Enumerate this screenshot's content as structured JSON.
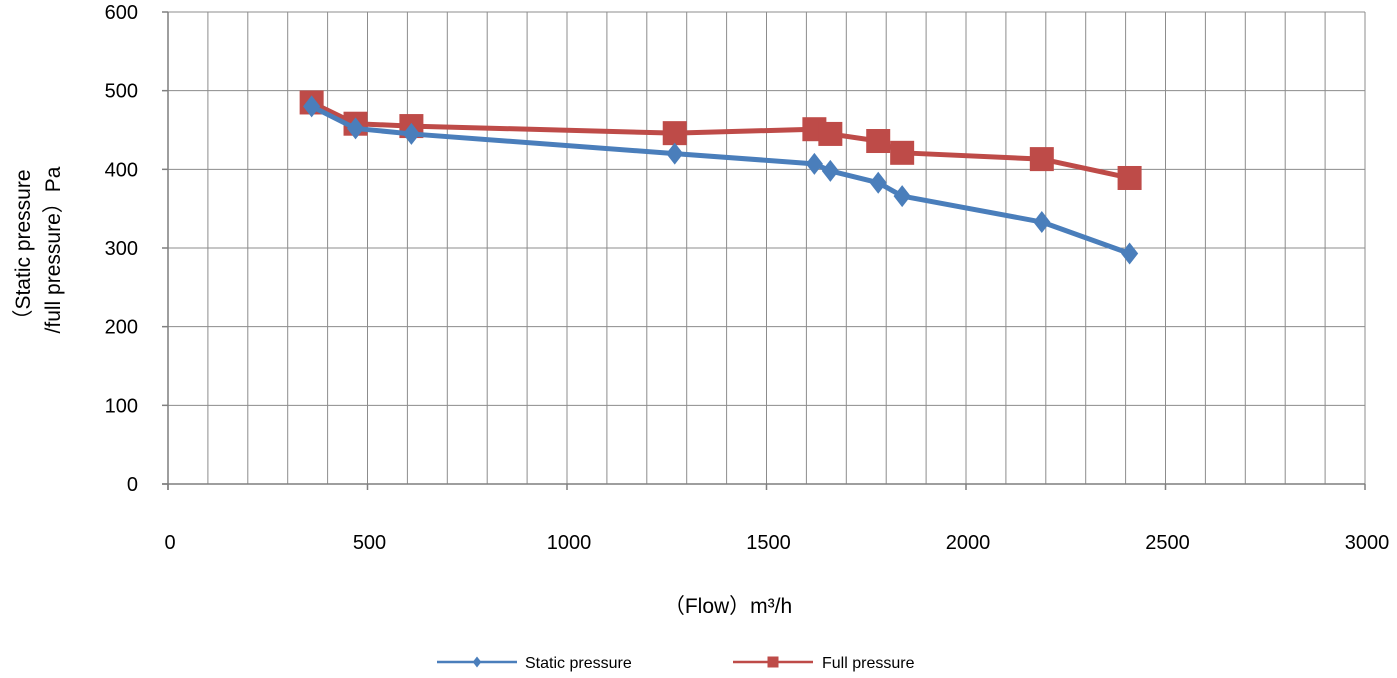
{
  "chart_data": {
    "type": "line",
    "title": "",
    "xlabel": "（Flow）m³/h",
    "ylabel_lines": [
      "（Static pressure",
      "/full pressure）Pa"
    ],
    "xlim": [
      0,
      3000
    ],
    "ylim": [
      0,
      600
    ],
    "x_ticks": [
      0,
      500,
      1000,
      1500,
      2000,
      2500,
      3000
    ],
    "y_ticks": [
      0,
      100,
      200,
      300,
      400,
      500,
      600
    ],
    "x_minor_step": 100,
    "grid": true,
    "legend_position": "bottom",
    "series": [
      {
        "name": "Static pressure",
        "color": "#4A7EBB",
        "marker": "diamond",
        "x": [
          360,
          470,
          610,
          1270,
          1620,
          1660,
          1780,
          1840,
          2190,
          2410
        ],
        "y": [
          480,
          452,
          445,
          420,
          407,
          398,
          383,
          366,
          333,
          293
        ]
      },
      {
        "name": "Full pressure",
        "color": "#BE4B48",
        "marker": "square",
        "x": [
          360,
          470,
          610,
          1270,
          1620,
          1660,
          1780,
          1840,
          2190,
          2410
        ],
        "y": [
          485,
          458,
          455,
          446,
          451,
          445,
          436,
          421,
          413,
          389
        ]
      }
    ]
  }
}
